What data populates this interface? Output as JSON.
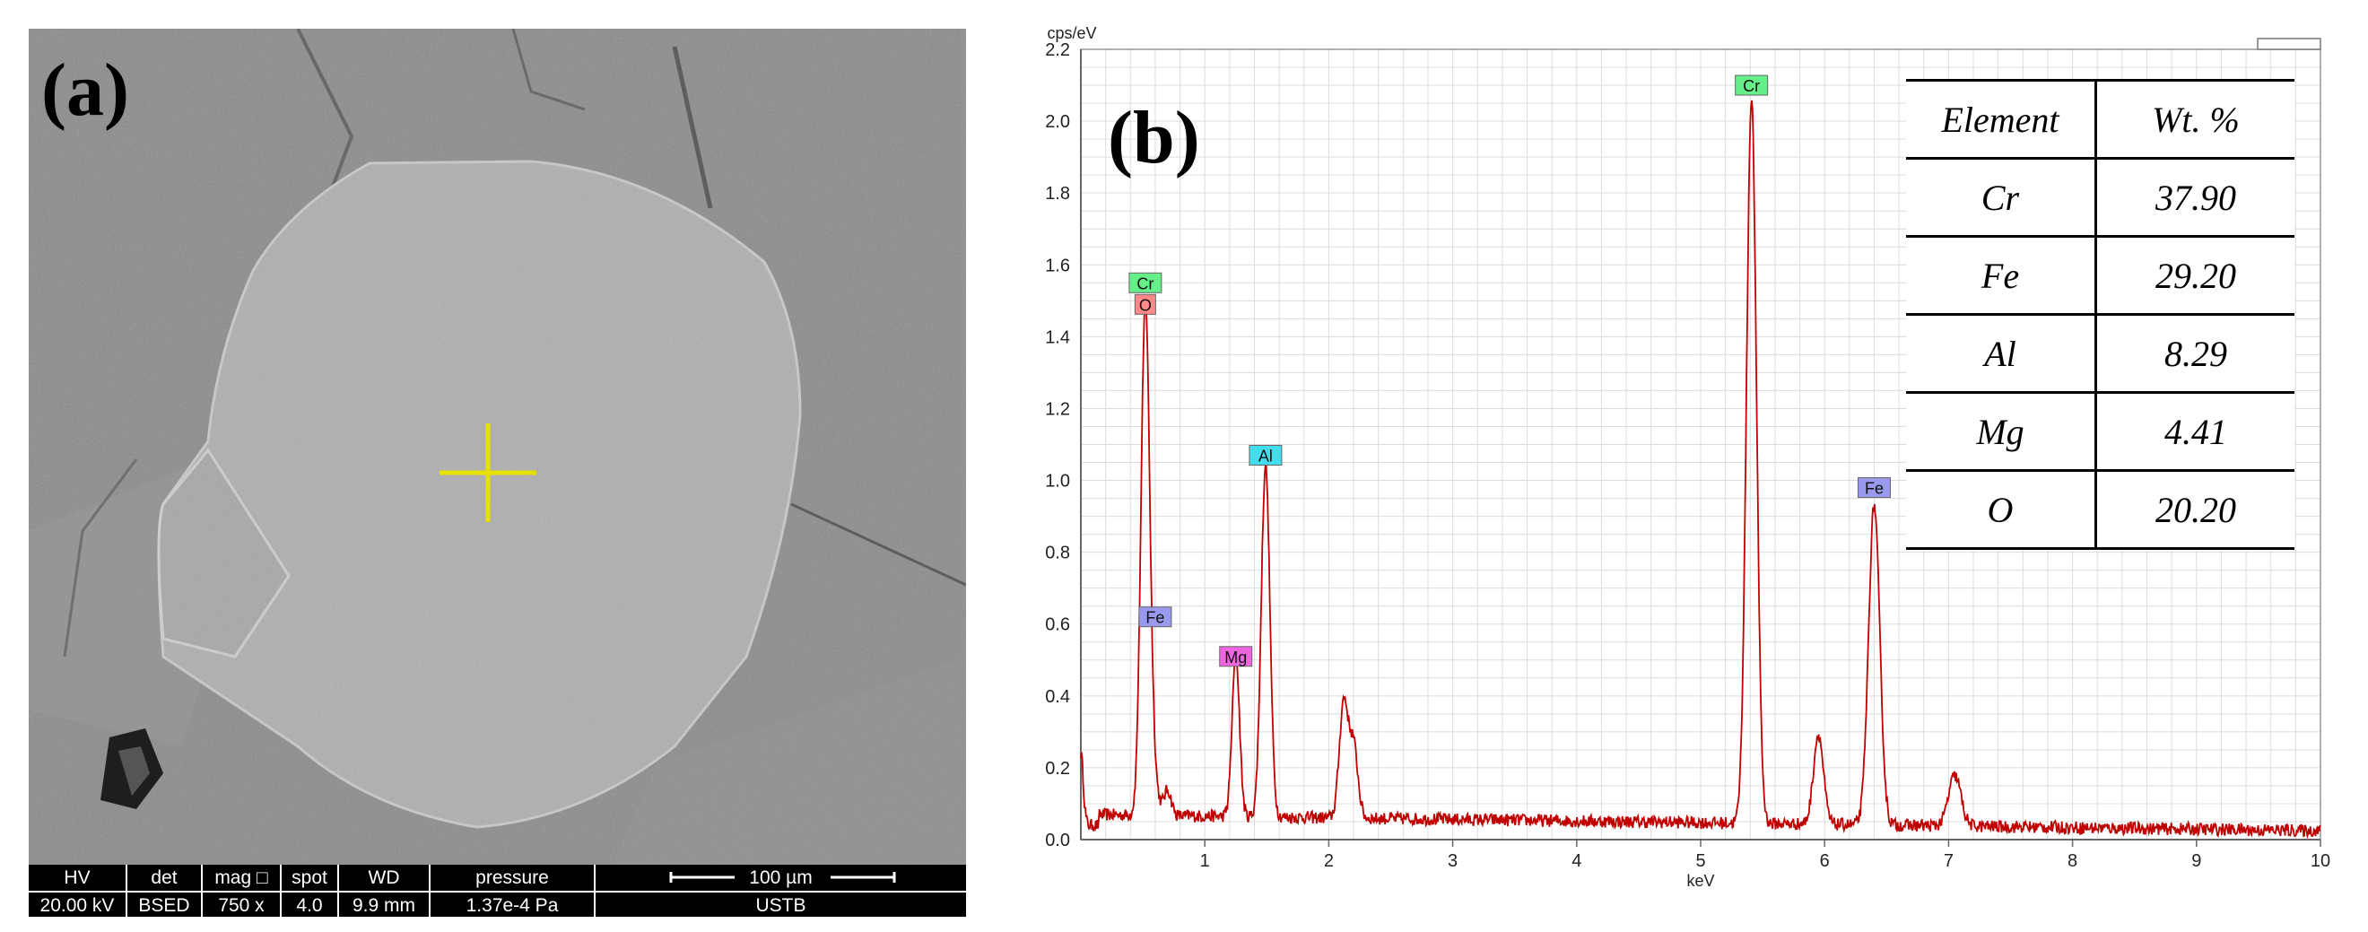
{
  "panel_a": {
    "label": "(a)",
    "databar": {
      "columns": [
        {
          "header": "HV",
          "value": "20.00 kV"
        },
        {
          "header": "det",
          "value": "BSED"
        },
        {
          "header": "mag □",
          "value": "750 x"
        },
        {
          "header": "spot",
          "value": "4.0"
        },
        {
          "header": "WD",
          "value": "9.9 mm"
        },
        {
          "header": "pressure",
          "value": "1.37e-4 Pa"
        }
      ],
      "scale_label": "100 µm",
      "lab": "USTB"
    }
  },
  "panel_b": {
    "label": "(b)",
    "table": {
      "headers": [
        "Element",
        "Wt. %"
      ],
      "rows": [
        [
          "Cr",
          "37.90"
        ],
        [
          "Fe",
          "29.20"
        ],
        [
          "Al",
          "8.29"
        ],
        [
          "Mg",
          "4.41"
        ],
        [
          "O",
          "20.20"
        ]
      ]
    }
  },
  "chart_data": {
    "type": "line",
    "xlabel": "keV",
    "ylabel": "cps/eV",
    "xlim": [
      0,
      10
    ],
    "ylim": [
      0,
      2.2
    ],
    "xticks": [
      1,
      2,
      3,
      4,
      5,
      6,
      7,
      8,
      9,
      10
    ],
    "yticks": [
      "0.0",
      "0.2",
      "0.4",
      "0.6",
      "0.8",
      "1.0",
      "1.2",
      "1.4",
      "1.6",
      "1.8",
      "2.0",
      "2.2"
    ],
    "grid": true,
    "colors": {
      "line": "#c00000"
    },
    "baseline": 0.07,
    "peaks": [
      {
        "x": 0.0,
        "y": 0.2,
        "w": 0.02
      },
      {
        "x": 0.52,
        "y": 1.4,
        "w": 0.035
      },
      {
        "x": 0.58,
        "y": 0.1,
        "w": 0.04
      },
      {
        "x": 0.7,
        "y": 0.07,
        "w": 0.03
      },
      {
        "x": 1.25,
        "y": 0.45,
        "w": 0.03
      },
      {
        "x": 1.49,
        "y": 0.98,
        "w": 0.035
      },
      {
        "x": 2.12,
        "y": 0.32,
        "w": 0.035
      },
      {
        "x": 2.2,
        "y": 0.2,
        "w": 0.035
      },
      {
        "x": 5.41,
        "y": 2.02,
        "w": 0.04
      },
      {
        "x": 5.95,
        "y": 0.25,
        "w": 0.04
      },
      {
        "x": 6.4,
        "y": 0.89,
        "w": 0.045
      },
      {
        "x": 7.05,
        "y": 0.14,
        "w": 0.05
      }
    ],
    "annotations": [
      {
        "text": "Cr",
        "x": 0.52,
        "y": 1.55,
        "color": "#66ee88"
      },
      {
        "text": "O",
        "x": 0.52,
        "y": 1.49,
        "color": "#ff8888"
      },
      {
        "text": "Fe",
        "x": 0.6,
        "y": 0.62,
        "color": "#9999ee"
      },
      {
        "text": "Mg",
        "x": 1.25,
        "y": 0.51,
        "color": "#ee66dd"
      },
      {
        "text": "Al",
        "x": 1.49,
        "y": 1.07,
        "color": "#44ddee"
      },
      {
        "text": "Cr",
        "x": 5.41,
        "y": 2.1,
        "color": "#66ee88"
      },
      {
        "text": "Fe",
        "x": 6.4,
        "y": 0.98,
        "color": "#9999ee"
      }
    ]
  }
}
